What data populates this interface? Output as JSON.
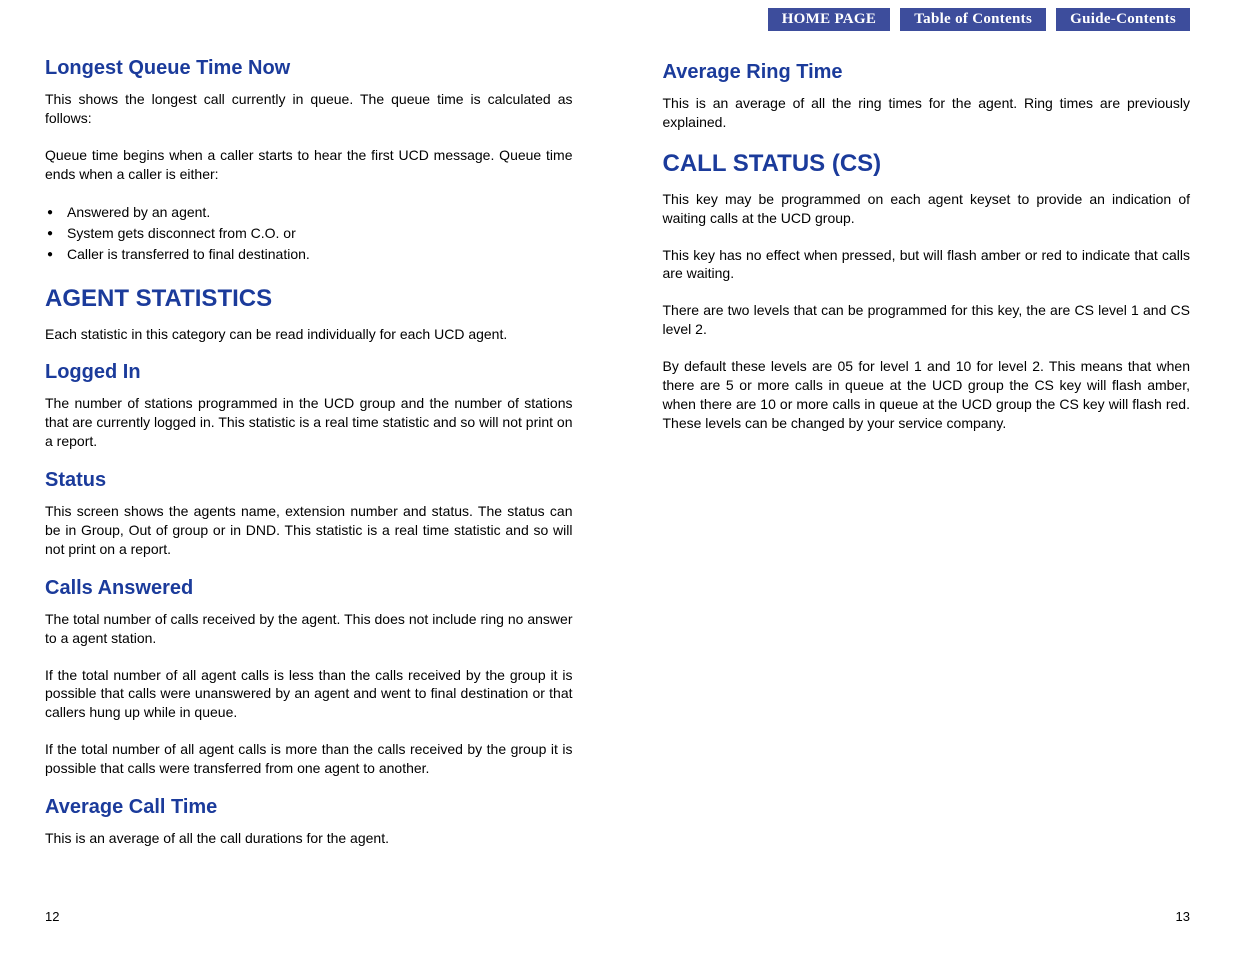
{
  "nav": {
    "home": "HOME PAGE",
    "toc": "Table of Contents",
    "guide": "Guide-Contents"
  },
  "colors": {
    "heading": "#1b3b9b",
    "body": "#000000",
    "nav_bg": "#3d4d9c",
    "nav_text": "#ffffff",
    "page_bg": "#ffffff"
  },
  "typography": {
    "h1_fontsize": 24,
    "h2_fontsize": 20,
    "body_fontsize": 14,
    "nav_fontsize": 15,
    "font_family": "Arial, Helvetica, sans-serif",
    "nav_font_family": "Georgia, serif"
  },
  "left": {
    "s1": {
      "title": "Longest Queue Time Now",
      "p1": "This shows the longest call currently in queue. The queue time is calculated as follows:",
      "p2": "Queue time begins when a caller starts to hear the first UCD message. Queue time ends when a caller is either:",
      "b1": "Answered by an agent.",
      "b2": "System gets disconnect from C.O. or",
      "b3": "Caller is transferred to final destination."
    },
    "s2": {
      "title": "AGENT STATISTICS",
      "p1": "Each statistic in this category can be read individually for each UCD agent."
    },
    "s3": {
      "title": "Logged In",
      "p1": "The number of stations programmed in the UCD group and the number of stations that are currently logged in. This statistic is a real time statistic and so will not print on a report."
    },
    "s4": {
      "title": "Status",
      "p1": "This screen shows the agents name, extension number and status. The status can be in Group, Out of group or in DND. This statistic is a real time statistic and so will not print on a report."
    },
    "s5": {
      "title": "Calls Answered",
      "p1": "The total number of calls received by the agent. This does not include ring no answer to a agent station.",
      "p2": "If the total number of all agent calls is less than the calls received by the group it is possible that calls were unanswered by an agent and went to final destination or that callers hung up while in queue.",
      "p3": "If the total number of all agent calls is more than the calls received by the group it is possible that calls were transferred from one agent to another."
    },
    "s6": {
      "title": "Average Call Time",
      "p1": "This is an average of all the call durations for the agent."
    },
    "page_num": "12"
  },
  "right": {
    "s1": {
      "title": "Average Ring Time",
      "p1": "This is an average of all the ring times for the agent. Ring times are previously explained."
    },
    "s2": {
      "title": "CALL STATUS (CS)",
      "p1": "This key may be programmed on each agent keyset to provide an indication of waiting calls at the UCD group.",
      "p2": "This key has no effect when pressed, but will flash  amber or red to indicate that calls are waiting.",
      "p3": "There are two levels that can be programmed for this key, the are CS level 1 and CS level 2.",
      "p4": "By default these levels are 05 for level 1 and 10 for level 2. This means that when there are 5 or more calls in queue at the UCD group the CS key will flash amber, when there are 10 or more calls in queue at the UCD group the CS key will flash red. These levels can be changed by your service company."
    },
    "page_num": "13"
  }
}
